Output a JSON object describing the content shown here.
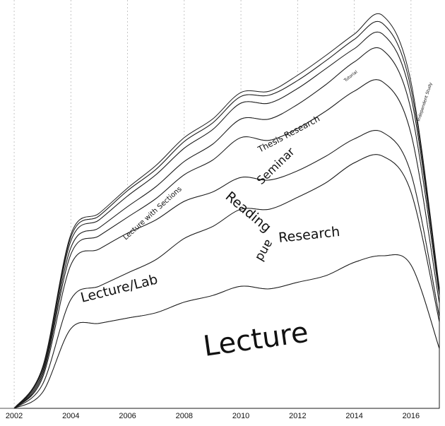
{
  "chart_data": {
    "type": "area",
    "subtype": "streamgraph",
    "title": "",
    "xlabel": "",
    "ylabel": "",
    "grid": "vertical-dotted",
    "legend": "none (labels inline)",
    "x": [
      2002,
      2003,
      2004,
      2005,
      2006,
      2007,
      2008,
      2009,
      2010,
      2011,
      2012,
      2013,
      2014,
      2015,
      2016,
      2017
    ],
    "x_ticks": [
      "2002",
      "2004",
      "2006",
      "2008",
      "2010",
      "2012",
      "2014",
      "2016"
    ],
    "xlim": [
      2001.5,
      2017.2
    ],
    "series": [
      {
        "name": "Lecture",
        "values": [
          0,
          12,
          60,
          64,
          68,
          72,
          80,
          85,
          92,
          90,
          95,
          100,
          110,
          115,
          108,
          45
        ]
      },
      {
        "name": "Reading and Research",
        "values": [
          0,
          6,
          22,
          28,
          34,
          40,
          48,
          52,
          58,
          60,
          64,
          70,
          75,
          75,
          55,
          20
        ]
      },
      {
        "name": "Lecture/Lab",
        "values": [
          0,
          5,
          26,
          28,
          30,
          30,
          28,
          26,
          24,
          22,
          20,
          20,
          18,
          18,
          14,
          4
        ]
      },
      {
        "name": "Seminar",
        "values": [
          0,
          2,
          8,
          10,
          12,
          16,
          20,
          24,
          30,
          30,
          32,
          34,
          36,
          38,
          30,
          10
        ]
      },
      {
        "name": "Thesis Research",
        "values": [
          0,
          2,
          5,
          6,
          8,
          9,
          10,
          12,
          14,
          16,
          18,
          20,
          22,
          24,
          18,
          6
        ]
      },
      {
        "name": "Lecture with Sections",
        "values": [
          0,
          2,
          5,
          6,
          8,
          9,
          10,
          11,
          12,
          12,
          12,
          12,
          10,
          12,
          10,
          3
        ]
      },
      {
        "name": "Independent Study",
        "values": [
          0,
          1,
          3,
          3,
          4,
          4,
          5,
          5,
          5,
          6,
          6,
          6,
          7,
          8,
          6,
          2
        ]
      },
      {
        "name": "Tutorial",
        "values": [
          0,
          1,
          2,
          2,
          2,
          3,
          3,
          3,
          3,
          3,
          4,
          4,
          4,
          6,
          5,
          1
        ]
      }
    ]
  },
  "labels": {
    "lecture": "Lecture",
    "lecture_lab": "Lecture/Lab",
    "reading": "Reading",
    "and": "and",
    "research": "Research",
    "seminar": "Seminar",
    "thesis_research": "Thesis Research",
    "lecture_with_sections": "Lecture with Sections",
    "tutorial": "Tutorial",
    "independent_study": "Independent Study"
  }
}
